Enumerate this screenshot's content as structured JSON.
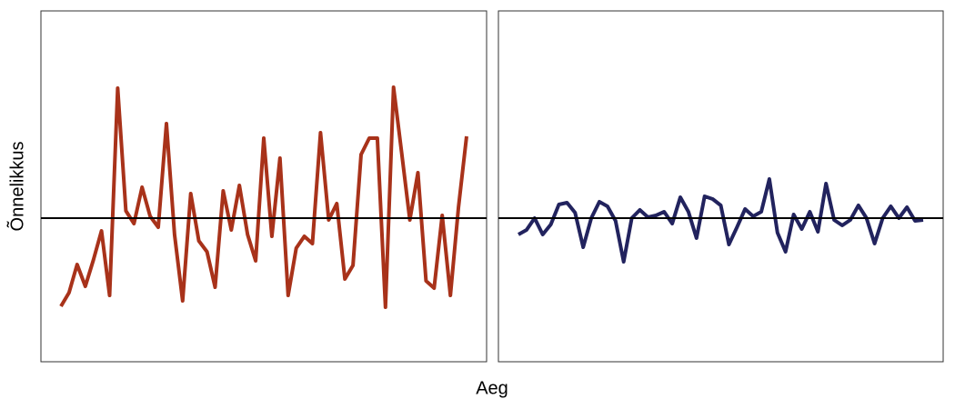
{
  "ylabel": "Õnnelikkus",
  "xlabel": "Aeg",
  "chart_data": [
    {
      "type": "line",
      "ylim": [
        -158,
        228
      ],
      "hline": 0,
      "series": [
        {
          "color": "#a8321a",
          "values": [
            -97,
            -82,
            -51,
            -75,
            -46,
            -14,
            -85,
            143,
            8,
            -6,
            34,
            2,
            -10,
            104,
            -18,
            -91,
            27,
            -25,
            -37,
            -76,
            30,
            -13,
            36,
            -18,
            -47,
            88,
            -20,
            66,
            -85,
            -33,
            -20,
            -28,
            94,
            -2,
            16,
            -67,
            -52,
            70,
            88,
            88,
            -98,
            144,
            72,
            -2,
            50,
            -69,
            -77,
            3,
            -85,
            12,
            90
          ]
        }
      ]
    },
    {
      "type": "line",
      "ylim": [
        -158,
        228
      ],
      "hline": 0,
      "series": [
        {
          "color": "#22235e",
          "values": [
            -18,
            -13,
            0,
            -18,
            -7,
            15,
            17,
            6,
            -32,
            0,
            18,
            13,
            -3,
            -48,
            0,
            9,
            1,
            3,
            7,
            -6,
            23,
            7,
            -22,
            24,
            21,
            14,
            -29,
            -10,
            10,
            2,
            7,
            43,
            -16,
            -37,
            4,
            -12,
            7,
            -15,
            38,
            -2,
            -8,
            -2,
            14,
            0,
            -28,
            0,
            13,
            0,
            12,
            -3,
            -2
          ]
        }
      ]
    }
  ]
}
